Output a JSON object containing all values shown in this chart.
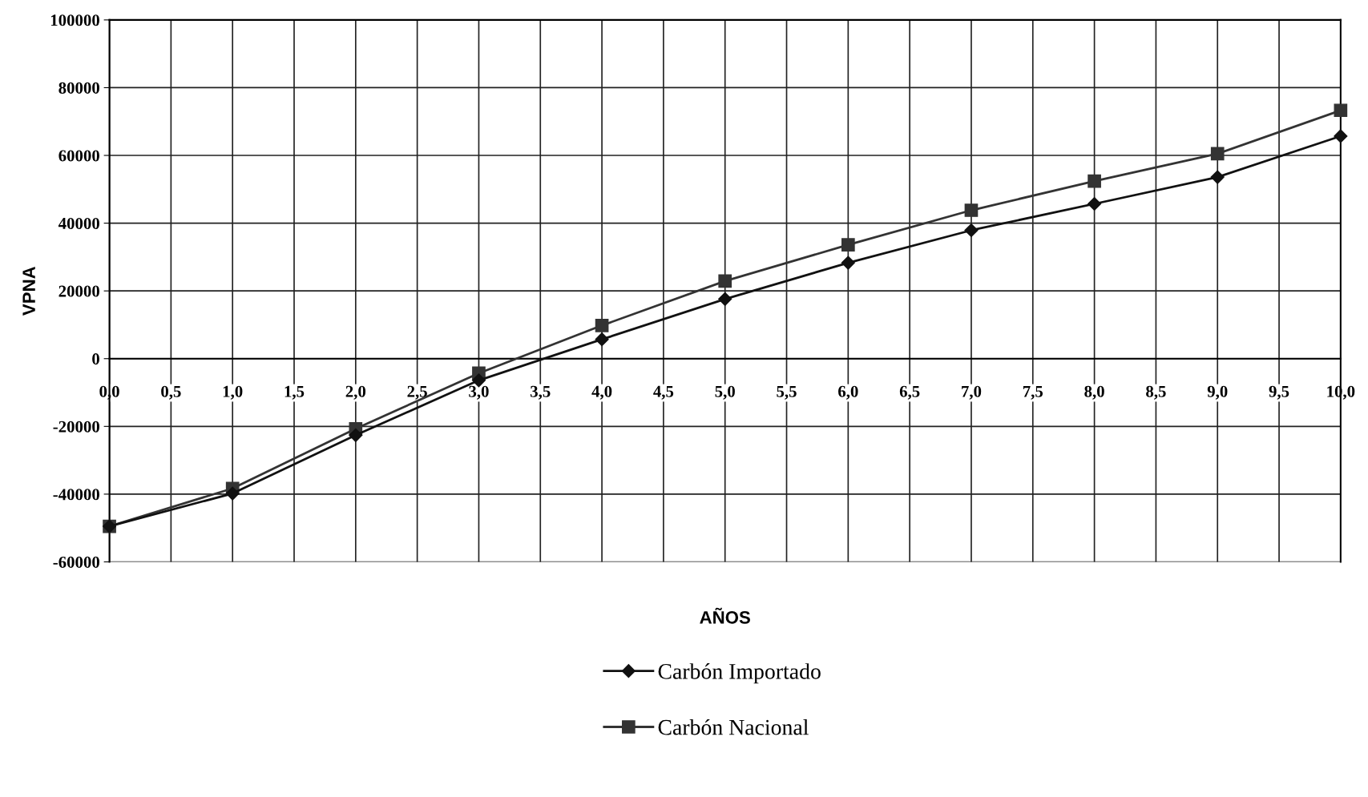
{
  "chart_data": {
    "type": "line",
    "xlabel": "AÑOS",
    "ylabel": "VPNA",
    "x": [
      0,
      1,
      2,
      3,
      4,
      5,
      6,
      7,
      8,
      9,
      10
    ],
    "series": [
      {
        "name": "Carbón Importado",
        "color": "#111111",
        "marker": "diamond",
        "values": [
          -49500,
          -39800,
          -22600,
          -6400,
          5700,
          17600,
          28300,
          37900,
          45700,
          53600,
          65700
        ]
      },
      {
        "name": "Carbón Nacional",
        "color": "#333333",
        "marker": "square",
        "values": [
          -49500,
          -38300,
          -20700,
          -4300,
          9800,
          22900,
          33600,
          43800,
          52400,
          60500,
          73300
        ]
      }
    ],
    "xlim": [
      0,
      10
    ],
    "xticks": [
      {
        "value": 0,
        "label": "0,0"
      },
      {
        "value": 0.5,
        "label": "0,5"
      },
      {
        "value": 1,
        "label": "1,0"
      },
      {
        "value": 1.5,
        "label": "1,5"
      },
      {
        "value": 2,
        "label": "2,0"
      },
      {
        "value": 2.5,
        "label": "2,5"
      },
      {
        "value": 3,
        "label": "3,0"
      },
      {
        "value": 3.5,
        "label": "3,5"
      },
      {
        "value": 4,
        "label": "4,0"
      },
      {
        "value": 4.5,
        "label": "4,5"
      },
      {
        "value": 5,
        "label": "5,0"
      },
      {
        "value": 5.5,
        "label": "5,5"
      },
      {
        "value": 6,
        "label": "6,0"
      },
      {
        "value": 6.5,
        "label": "6,5"
      },
      {
        "value": 7,
        "label": "7,0"
      },
      {
        "value": 7.5,
        "label": "7,5"
      },
      {
        "value": 8,
        "label": "8,0"
      },
      {
        "value": 8.5,
        "label": "8,5"
      },
      {
        "value": 9,
        "label": "9,0"
      },
      {
        "value": 9.5,
        "label": "9,5"
      },
      {
        "value": 10,
        "label": "10,0"
      }
    ],
    "ylim": [
      -60000,
      100000
    ],
    "yticks": [
      -60000,
      -40000,
      -20000,
      0,
      20000,
      40000,
      60000,
      80000,
      100000
    ],
    "grid": true,
    "legend": "bottom",
    "line_style": "solid"
  }
}
